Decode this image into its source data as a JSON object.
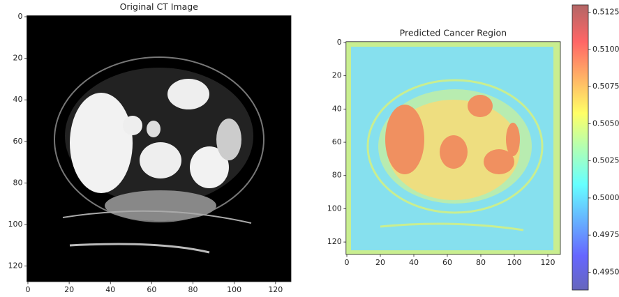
{
  "chart_data": [
    {
      "type": "image",
      "title": "Original CT Image",
      "xlim": [
        -0.5,
        127.5
      ],
      "ylim": [
        127.5,
        -0.5
      ],
      "xticks": [
        0,
        20,
        40,
        60,
        80,
        100,
        120
      ],
      "yticks": [
        0,
        20,
        40,
        60,
        80,
        100,
        120
      ]
    },
    {
      "type": "image",
      "title": "Predicted Cancer Region",
      "xlim": [
        -0.5,
        127.5
      ],
      "ylim": [
        127.5,
        -0.5
      ],
      "xticks": [
        0,
        20,
        40,
        60,
        80,
        100,
        120
      ],
      "yticks": [
        0,
        20,
        40,
        60,
        80,
        100,
        120
      ],
      "colormap": "jet",
      "clim": [
        0.4938,
        0.513
      ],
      "cticks": [
        {
          "value": 0.495,
          "label": "0.4950"
        },
        0.4975,
        {
          "value": 0.5,
          "label": "0.5000"
        },
        0.5025,
        {
          "value": 0.505,
          "label": "0.5050"
        },
        0.5075,
        {
          "value": 0.51,
          "label": "0.5100"
        },
        0.5125
      ]
    }
  ]
}
